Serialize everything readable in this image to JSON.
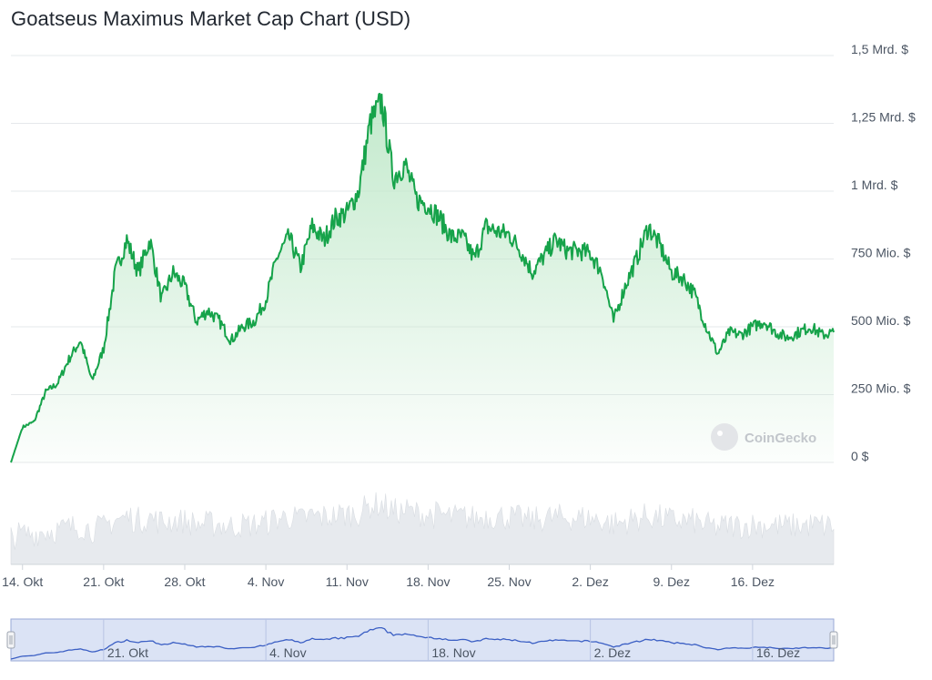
{
  "chart_title": "Goatseus Maximus Market Cap Chart (USD)",
  "watermark": "CoinGecko",
  "colors": {
    "line": "#16a34a",
    "area_top": "#bfe8c9",
    "volume": "#e7eaee",
    "navigator_fill": "#dbe3f5",
    "navigator_line": "#3b5fc4",
    "navigator_border": "#9aa9d6"
  },
  "chart_data": {
    "type": "area",
    "title": "Goatseus Maximus Market Cap Chart (USD)",
    "currency": "USD",
    "ylim": [
      0,
      1500000000
    ],
    "y_ticks": [
      {
        "value": 0,
        "label": "0 $"
      },
      {
        "value": 250000000,
        "label": "250 Mio. $"
      },
      {
        "value": 500000000,
        "label": "500 Mio. $"
      },
      {
        "value": 750000000,
        "label": "750 Mio. $"
      },
      {
        "value": 1000000000,
        "label": "1 Mrd. $"
      },
      {
        "value": 1250000000,
        "label": "1,25 Mrd. $"
      },
      {
        "value": 1500000000,
        "label": "1,5 Mrd. $"
      }
    ],
    "x_ticks": [
      "14. Okt",
      "21. Okt",
      "28. Okt",
      "4. Nov",
      "11. Nov",
      "18. Nov",
      "25. Nov",
      "2. Dez",
      "9. Dez",
      "16. Dez"
    ],
    "x_range": [
      "2024-10-13",
      "2024-12-23"
    ],
    "grid": true,
    "series": [
      {
        "x": [
          "2024-10-13",
          "2024-10-14",
          "2024-10-15",
          "2024-10-16",
          "2024-10-17",
          "2024-10-18",
          "2024-10-19",
          "2024-10-20",
          "2024-10-21",
          "2024-10-22",
          "2024-10-23",
          "2024-10-24",
          "2024-10-25",
          "2024-10-26",
          "2024-10-27",
          "2024-10-28",
          "2024-10-29",
          "2024-10-30",
          "2024-10-31",
          "2024-11-01",
          "2024-11-02",
          "2024-11-03",
          "2024-11-04",
          "2024-11-05",
          "2024-11-06",
          "2024-11-07",
          "2024-11-08",
          "2024-11-09",
          "2024-11-10",
          "2024-11-11",
          "2024-11-12",
          "2024-11-13",
          "2024-11-14",
          "2024-11-15",
          "2024-11-16",
          "2024-11-17",
          "2024-11-18",
          "2024-11-19",
          "2024-11-20",
          "2024-11-21",
          "2024-11-22",
          "2024-11-23",
          "2024-11-24",
          "2024-11-25",
          "2024-11-26",
          "2024-11-27",
          "2024-11-28",
          "2024-11-29",
          "2024-11-30",
          "2024-12-01",
          "2024-12-02",
          "2024-12-03",
          "2024-12-04",
          "2024-12-05",
          "2024-12-06",
          "2024-12-07",
          "2024-12-08",
          "2024-12-09",
          "2024-12-10",
          "2024-12-11",
          "2024-12-12",
          "2024-12-13",
          "2024-12-14",
          "2024-12-15",
          "2024-12-16",
          "2024-12-17",
          "2024-12-18",
          "2024-12-19",
          "2024-12-20",
          "2024-12-21",
          "2024-12-22",
          "2024-12-23"
        ],
        "values": [
          0,
          130000000,
          150000000,
          260000000,
          290000000,
          380000000,
          450000000,
          300000000,
          420000000,
          700000000,
          820000000,
          700000000,
          820000000,
          600000000,
          700000000,
          650000000,
          520000000,
          560000000,
          520000000,
          450000000,
          500000000,
          520000000,
          600000000,
          760000000,
          830000000,
          720000000,
          870000000,
          820000000,
          900000000,
          920000000,
          1000000000,
          1250000000,
          1330000000,
          1050000000,
          1100000000,
          970000000,
          950000000,
          900000000,
          830000000,
          830000000,
          750000000,
          870000000,
          850000000,
          840000000,
          780000000,
          700000000,
          760000000,
          820000000,
          780000000,
          780000000,
          770000000,
          700000000,
          520000000,
          650000000,
          750000000,
          870000000,
          800000000,
          700000000,
          680000000,
          620000000,
          500000000,
          400000000,
          480000000,
          470000000,
          500000000,
          520000000,
          480000000,
          460000000,
          480000000,
          500000000,
          470000000,
          480000000
        ]
      }
    ],
    "navigator_ticks": [
      "21. Okt",
      "4. Nov",
      "18. Nov",
      "2. Dez",
      "16. Dez"
    ]
  }
}
